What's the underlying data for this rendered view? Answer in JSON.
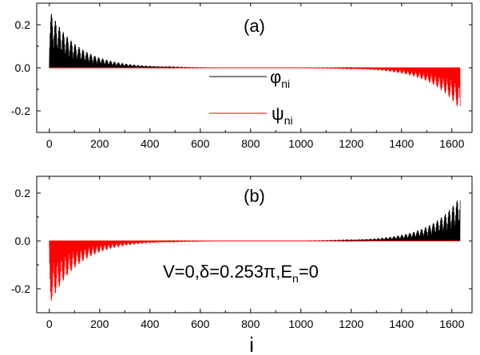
{
  "chart_data": [
    {
      "type": "line",
      "panel_label": "(a)",
      "xlim": [
        -50,
        1680
      ],
      "ylim": [
        -0.3,
        0.3
      ],
      "xticks": [
        0,
        200,
        400,
        600,
        800,
        1000,
        1200,
        1400,
        1600
      ],
      "yticks": [
        -0.2,
        0.0,
        0.2
      ],
      "ytick_labels": [
        "-0.2",
        "0.0",
        "0.2"
      ],
      "n_sites": 1632,
      "series": [
        {
          "name": "φ",
          "subscript": "ni",
          "color": "#000000",
          "envelope_side": "left",
          "peak_x": 0,
          "peak_amplitude": 0.27,
          "decay_length": 115,
          "sign": "positive"
        },
        {
          "name": "ψ",
          "subscript": "ni",
          "color": "#ff0000",
          "envelope_side": "right",
          "peak_x": 1632,
          "peak_amplitude": 0.2,
          "decay_length": 115,
          "sign": "negative"
        }
      ],
      "legend_position": "center"
    },
    {
      "type": "line",
      "panel_label": "(b)",
      "xlim": [
        -50,
        1680
      ],
      "ylim": [
        -0.3,
        0.27
      ],
      "xticks": [
        0,
        200,
        400,
        600,
        800,
        1000,
        1200,
        1400,
        1600
      ],
      "yticks": [
        -0.2,
        0.0,
        0.2
      ],
      "ytick_labels": [
        "-0.2",
        "0.0",
        "0.2"
      ],
      "n_sites": 1632,
      "series": [
        {
          "name": "φ",
          "color": "#000000",
          "envelope_side": "right",
          "peak_x": 1632,
          "peak_amplitude": 0.19,
          "decay_length": 115,
          "sign": "positive"
        },
        {
          "name": "ψ",
          "color": "#ff0000",
          "envelope_side": "left",
          "peak_x": 0,
          "peak_amplitude": 0.27,
          "decay_length": 115,
          "sign": "negative"
        }
      ],
      "annotation": {
        "pre": "V=0,",
        "delta": "δ",
        "mid": "=0.253",
        "pi": "π",
        "post": ",E",
        "sub": "n",
        "tail": "=0"
      },
      "xlabel": "i"
    }
  ]
}
